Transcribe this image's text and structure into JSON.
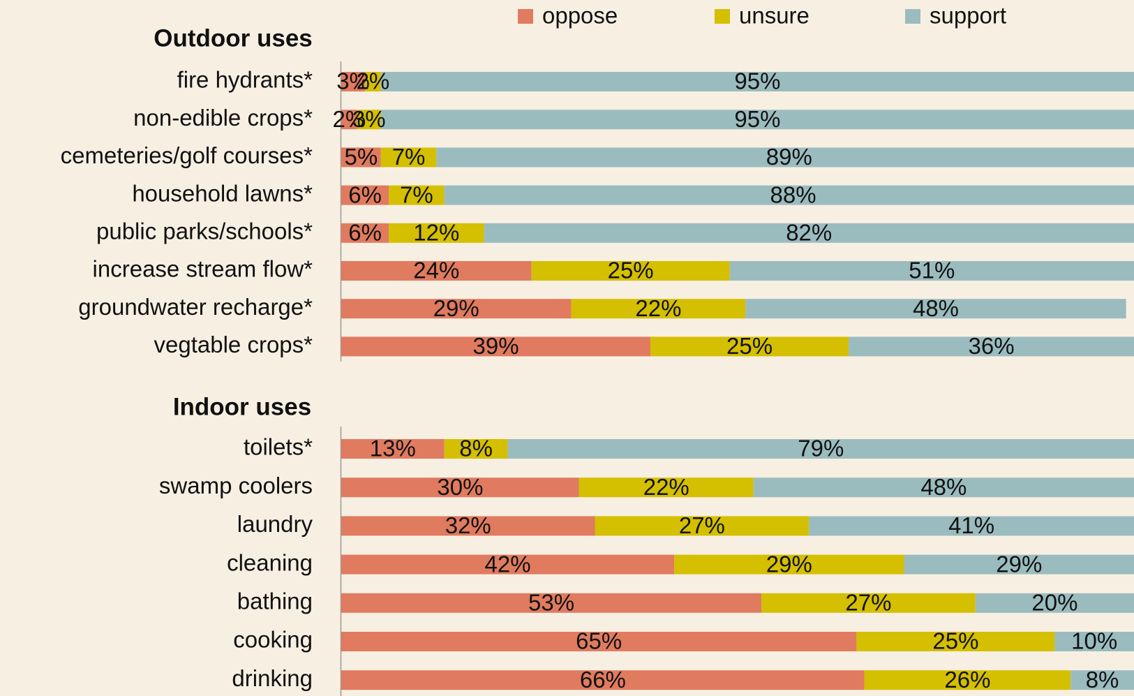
{
  "chart_data": [
    {
      "type": "stacked-bar-horizontal",
      "title": "Outdoor uses",
      "categories": [
        "fire hydrants*",
        "non-edible crops*",
        "cemeteries/golf courses*",
        "household lawns*",
        "public parks/schools*",
        "increase stream flow*",
        "groundwater recharge*",
        "vegtable crops*"
      ],
      "xlim": [
        0,
        100
      ],
      "series": [
        {
          "name": "oppose",
          "color": "#e07b5f",
          "values": [
            3,
            2,
            5,
            6,
            6,
            24,
            29,
            39
          ],
          "value_labels": [
            "3%",
            "2%",
            "5%",
            "6%",
            "6%",
            "24%",
            "29%",
            "39%"
          ]
        },
        {
          "name": "unsure",
          "color": "#d4bf00",
          "values": [
            2,
            3,
            7,
            7,
            12,
            25,
            22,
            25
          ],
          "value_labels": [
            "2%",
            "3%",
            "7%",
            "7%",
            "12%",
            "25%",
            "22%",
            "25%"
          ]
        },
        {
          "name": "support",
          "color": "#9bbcbf",
          "values": [
            95,
            95,
            89,
            88,
            82,
            51,
            48,
            36
          ],
          "value_labels": [
            "95%",
            "95%",
            "89%",
            "88%",
            "82%",
            "51%",
            "48%",
            "36%"
          ]
        }
      ]
    },
    {
      "type": "stacked-bar-horizontal",
      "title": "Indoor uses",
      "categories": [
        "toilets*",
        "swamp coolers",
        "laundry",
        "cleaning",
        "bathing",
        "cooking",
        "drinking"
      ],
      "xlim": [
        0,
        100
      ],
      "series": [
        {
          "color": "#e07b5f",
          "values": [
            13,
            30,
            32,
            42,
            53,
            65,
            66
          ],
          "value_labels": [
            "13%",
            "30%",
            "32%",
            "42%",
            "53%",
            "65%",
            "66%"
          ]
        },
        {
          "color": "#d4bf00",
          "values": [
            8,
            22,
            27,
            29,
            27,
            25,
            26
          ],
          "value_labels": [
            "8%",
            "22%",
            "27%",
            "29%",
            "27%",
            "25%",
            "26%"
          ]
        },
        {
          "color": "#9bbcbf",
          "values": [
            79,
            48,
            41,
            29,
            20,
            10,
            8
          ],
          "value_labels": [
            "79%",
            "48%",
            "41%",
            "29%",
            "20%",
            "10%",
            "8%"
          ]
        }
      ]
    }
  ]
}
